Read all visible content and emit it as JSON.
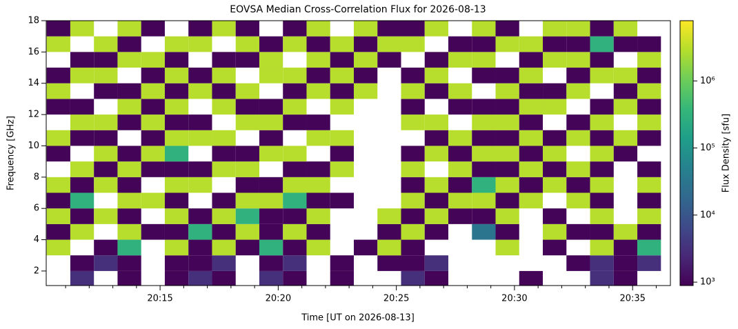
{
  "chart_data": {
    "type": "heatmap",
    "title": "EOVSA Median Cross-Correlation Flux for 2026-08-13",
    "x_label": "Time [UT on 2026-08-13]",
    "y_label": "Frequency [GHz]",
    "colorbar_label": "Flux Density [sfu]",
    "colormap": "viridis",
    "color_scale": "log",
    "xlim": [
      1210.18,
      1236.6
    ],
    "ylim": [
      1.07,
      18
    ],
    "clim": [
      890,
      7900000
    ],
    "xticks": [
      {
        "value": 1215,
        "label": "20:15"
      },
      {
        "value": 1220,
        "label": "20:20"
      },
      {
        "value": 1225,
        "label": "20:25"
      },
      {
        "value": 1230,
        "label": "20:30"
      },
      {
        "value": 1235,
        "label": "20:35"
      }
    ],
    "xminorticks": [
      1211,
      1212,
      1213,
      1214,
      1216,
      1217,
      1218,
      1219,
      1221,
      1222,
      1223,
      1224,
      1226,
      1227,
      1228,
      1229,
      1231,
      1232,
      1233,
      1234,
      1236
    ],
    "yticks": [
      2,
      4,
      6,
      8,
      10,
      12,
      14,
      16,
      18
    ],
    "cticks": [
      {
        "value": 1000,
        "label": "10³"
      },
      {
        "value": 10000,
        "label": "10⁴"
      },
      {
        "value": 100000,
        "label": "10⁵"
      },
      {
        "value": 1000000,
        "label": "10⁶"
      }
    ],
    "x": [
      1210.7,
      1211.7,
      1212.7,
      1213.7,
      1214.7,
      1215.7,
      1216.7,
      1217.7,
      1218.7,
      1219.7,
      1220.7,
      1221.7,
      1222.7,
      1223.7,
      1224.7,
      1225.7,
      1226.7,
      1227.7,
      1228.7,
      1229.7,
      1230.7,
      1231.7,
      1232.7,
      1233.7,
      1234.7,
      1235.7
    ],
    "y": [
      1.5,
      2.5,
      3.5,
      4.5,
      5.5,
      6.5,
      7.5,
      8.5,
      9.5,
      10.5,
      11.5,
      12.5,
      13.5,
      14.5,
      15.5,
      16.5,
      17.5
    ],
    "z": [
      [
        null,
        3000,
        null,
        1000,
        null,
        1000,
        3000,
        1000,
        null,
        3000,
        1000,
        null,
        1000,
        null,
        null,
        3000,
        1000,
        null,
        null,
        null,
        1000,
        null,
        null,
        3000,
        1000,
        null
      ],
      [
        null,
        1000,
        3000,
        1000,
        null,
        1000,
        1000,
        3000,
        null,
        1000,
        3000,
        null,
        1000,
        null,
        1000,
        1000,
        3000,
        null,
        null,
        null,
        null,
        null,
        1000,
        3000,
        1000,
        3000
      ],
      [
        3000000.0,
        null,
        1000,
        300000.0,
        null,
        3000000.0,
        1000,
        3000000.0,
        1000,
        300000.0,
        1000,
        3000000.0,
        null,
        1000,
        3000000.0,
        1000,
        null,
        null,
        null,
        3000000.0,
        null,
        1000,
        null,
        3000000.0,
        1000,
        300000.0
      ],
      [
        1000,
        3000000.0,
        null,
        3000000.0,
        1000,
        1000,
        300000.0,
        1000,
        3000000.0,
        1000,
        3000000.0,
        1000,
        null,
        null,
        1000,
        3000000.0,
        1000,
        null,
        30000.0,
        1000,
        null,
        3000000.0,
        1000,
        1000,
        3000000.0,
        1000
      ],
      [
        3000000.0,
        1000,
        3000000.0,
        1000,
        null,
        3000000.0,
        1000,
        3000000.0,
        300000.0,
        1000,
        1000,
        3000000.0,
        null,
        null,
        3000000.0,
        1000,
        3000000.0,
        1000,
        1000,
        3000000.0,
        null,
        1000,
        null,
        3000000.0,
        null,
        3000000.0
      ],
      [
        1000,
        300000.0,
        null,
        3000000.0,
        3000000.0,
        1000,
        null,
        1000,
        3000000.0,
        3000000.0,
        300000.0,
        1000,
        1000,
        null,
        null,
        3000000.0,
        1000,
        3000000.0,
        3000000.0,
        1000,
        3000000.0,
        null,
        3000000.0,
        1000,
        null,
        1000
      ],
      [
        3000000.0,
        1000,
        3000000.0,
        1000,
        null,
        3000000.0,
        3000000.0,
        null,
        1000,
        1000,
        3000000.0,
        3000000.0,
        null,
        null,
        null,
        1000,
        3000000.0,
        1000,
        300000.0,
        3000000.0,
        1000,
        3000000.0,
        1000,
        3000000.0,
        null,
        3000000.0
      ],
      [
        null,
        3000000.0,
        1000,
        3000000.0,
        1000,
        1000,
        1000,
        3000000.0,
        3000000.0,
        null,
        1000,
        1000,
        3000000.0,
        null,
        null,
        3000000.0,
        null,
        3000000.0,
        1000,
        1000,
        3000000.0,
        1000,
        3000000.0,
        1000,
        null,
        1000
      ],
      [
        1000,
        null,
        3000000.0,
        1000,
        3000000.0,
        300000.0,
        null,
        1000,
        1000,
        3000000.0,
        3000000.0,
        null,
        1000,
        null,
        null,
        1000,
        3000000.0,
        1000,
        3000000.0,
        3000000.0,
        1000,
        3000000.0,
        null,
        3000000.0,
        1000,
        null
      ],
      [
        3000000.0,
        1000,
        1000,
        null,
        1000,
        3000000.0,
        3000000.0,
        3000000.0,
        null,
        1000,
        null,
        3000000.0,
        3000000.0,
        null,
        null,
        null,
        1000,
        3000000.0,
        1000,
        1000,
        3000000.0,
        1000,
        3000000.0,
        1000,
        3000000.0,
        1000
      ],
      [
        null,
        3000000.0,
        3000000.0,
        1000,
        3000000.0,
        1000,
        1000,
        null,
        3000000.0,
        3000000.0,
        1000,
        1000,
        null,
        null,
        null,
        3000000.0,
        3000000.0,
        null,
        3000000.0,
        3000000.0,
        1000,
        null,
        1000,
        3000000.0,
        null,
        3000000.0
      ],
      [
        1000,
        1000,
        null,
        3000000.0,
        1000,
        3000000.0,
        null,
        3000000.0,
        1000,
        1000,
        3000000.0,
        null,
        3000000.0,
        null,
        null,
        1000,
        null,
        1000,
        1000,
        1000,
        3000000.0,
        3000000.0,
        null,
        1000,
        3000000.0,
        1000
      ],
      [
        3000000.0,
        null,
        1000,
        1000,
        3000000.0,
        1000,
        3000000.0,
        1000,
        3000000.0,
        null,
        1000,
        3000000.0,
        1000,
        3000000.0,
        null,
        3000000.0,
        1000,
        3000000.0,
        null,
        3000000.0,
        1000,
        1000,
        3000000.0,
        null,
        1000,
        3000000.0
      ],
      [
        1000,
        3000000.0,
        3000000.0,
        null,
        1000,
        3000000.0,
        1000,
        3000000.0,
        null,
        3000000.0,
        3000000.0,
        1000,
        3000000.0,
        1000,
        null,
        1000,
        3000000.0,
        null,
        1000,
        1000,
        3000000.0,
        null,
        1000,
        3000000.0,
        3000000.0,
        1000
      ],
      [
        null,
        1000,
        1000,
        3000000.0,
        3000000.0,
        1000,
        null,
        1000,
        1000,
        3000000.0,
        null,
        3000000.0,
        1000,
        3000000.0,
        1000,
        null,
        1000,
        3000000.0,
        3000000.0,
        null,
        1000,
        3000000.0,
        3000000.0,
        1000,
        null,
        3000000.0
      ],
      [
        3000000.0,
        null,
        3000000.0,
        1000,
        null,
        3000000.0,
        3000000.0,
        null,
        3000000.0,
        1000,
        3000000.0,
        1000,
        3000000.0,
        1000,
        3000000.0,
        3000000.0,
        null,
        1000,
        1000,
        3000000.0,
        3000000.0,
        1000,
        1000,
        300000.0,
        1000,
        1000
      ],
      [
        1000,
        3000000.0,
        null,
        3000000.0,
        1000,
        null,
        1000,
        3000000.0,
        1000,
        null,
        1000,
        3000000.0,
        null,
        3000000.0,
        1000,
        1000,
        3000000.0,
        null,
        3000000.0,
        1000,
        null,
        3000000.0,
        3000000.0,
        1000,
        3000000.0,
        null
      ]
    ]
  }
}
